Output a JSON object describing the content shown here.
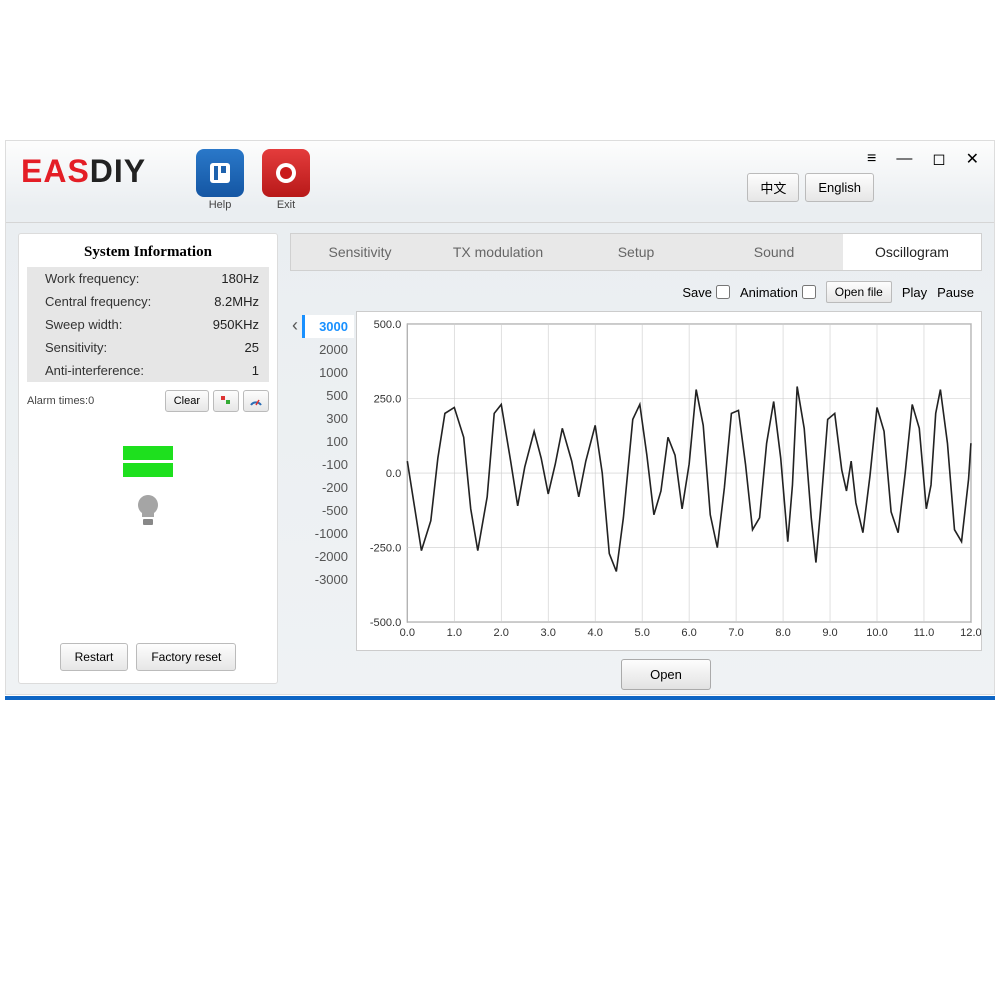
{
  "logo": {
    "part1": "EAS",
    "part2": "DIY"
  },
  "header": {
    "help_label": "Help",
    "exit_label": "Exit",
    "lang_cn": "中文",
    "lang_en": "English"
  },
  "sysinfo": {
    "title": "System  Information",
    "rows": [
      {
        "label": "Work frequency:",
        "value": "180Hz"
      },
      {
        "label": "Central frequency:",
        "value": "8.2MHz"
      },
      {
        "label": "Sweep width:",
        "value": "950KHz"
      },
      {
        "label": "Sensitivity:",
        "value": "25"
      },
      {
        "label": "Anti-interference:",
        "value": "1"
      }
    ]
  },
  "alarm": {
    "label": "Alarm times:0",
    "clear": "Clear"
  },
  "bottom": {
    "restart": "Restart",
    "factory": "Factory reset"
  },
  "tabs": {
    "items": [
      "Sensitivity",
      "TX modulation",
      "Setup",
      "Sound",
      "Oscillogram"
    ],
    "active_index": 4
  },
  "controls": {
    "save": "Save",
    "animation": "Animation",
    "openfile": "Open file",
    "play": "Play",
    "pause": "Pause"
  },
  "yscale": {
    "items": [
      "3000",
      "2000",
      "1000",
      "500",
      "300",
      "100",
      "-100",
      "-200",
      "-500",
      "-1000",
      "-2000",
      "-3000"
    ],
    "selected_index": 0
  },
  "chart": {
    "type": "line",
    "xlim": [
      0,
      12
    ],
    "ylim": [
      -500,
      500
    ],
    "xticks": [
      0,
      1,
      2,
      3,
      4,
      5,
      6,
      7,
      8,
      9,
      10,
      11,
      12
    ],
    "yticks": [
      -500,
      -250,
      0,
      250,
      500
    ],
    "ytick_labels": [
      "-500.0",
      "-250.0",
      "0.0",
      "250.0",
      "500.0"
    ],
    "xtick_labels": [
      "0.0",
      "1.0",
      "2.0",
      "3.0",
      "4.0",
      "5.0",
      "6.0",
      "7.0",
      "8.0",
      "9.0",
      "10.0",
      "11.0",
      "12.0"
    ],
    "grid_color": "#cccccc",
    "line_color": "#222222",
    "background": "#ffffff",
    "axis_fontsize": 11,
    "data_xy": [
      [
        0.0,
        40
      ],
      [
        0.15,
        -110
      ],
      [
        0.3,
        -260
      ],
      [
        0.5,
        -160
      ],
      [
        0.65,
        50
      ],
      [
        0.8,
        200
      ],
      [
        1.0,
        220
      ],
      [
        1.2,
        120
      ],
      [
        1.35,
        -120
      ],
      [
        1.5,
        -260
      ],
      [
        1.7,
        -80
      ],
      [
        1.85,
        200
      ],
      [
        2.0,
        230
      ],
      [
        2.2,
        40
      ],
      [
        2.35,
        -110
      ],
      [
        2.5,
        20
      ],
      [
        2.7,
        140
      ],
      [
        2.85,
        50
      ],
      [
        3.0,
        -70
      ],
      [
        3.15,
        30
      ],
      [
        3.3,
        150
      ],
      [
        3.5,
        40
      ],
      [
        3.65,
        -80
      ],
      [
        3.8,
        40
      ],
      [
        4.0,
        160
      ],
      [
        4.15,
        0
      ],
      [
        4.3,
        -270
      ],
      [
        4.45,
        -330
      ],
      [
        4.6,
        -150
      ],
      [
        4.8,
        180
      ],
      [
        4.95,
        230
      ],
      [
        5.1,
        60
      ],
      [
        5.25,
        -140
      ],
      [
        5.4,
        -60
      ],
      [
        5.55,
        120
      ],
      [
        5.7,
        60
      ],
      [
        5.85,
        -120
      ],
      [
        6.0,
        30
      ],
      [
        6.15,
        280
      ],
      [
        6.3,
        160
      ],
      [
        6.45,
        -140
      ],
      [
        6.6,
        -250
      ],
      [
        6.75,
        -50
      ],
      [
        6.9,
        200
      ],
      [
        7.05,
        210
      ],
      [
        7.2,
        30
      ],
      [
        7.35,
        -190
      ],
      [
        7.5,
        -150
      ],
      [
        7.65,
        100
      ],
      [
        7.8,
        240
      ],
      [
        7.95,
        50
      ],
      [
        8.1,
        -230
      ],
      [
        8.2,
        -40
      ],
      [
        8.3,
        290
      ],
      [
        8.45,
        150
      ],
      [
        8.6,
        -150
      ],
      [
        8.7,
        -300
      ],
      [
        8.8,
        -120
      ],
      [
        8.95,
        180
      ],
      [
        9.1,
        200
      ],
      [
        9.25,
        10
      ],
      [
        9.35,
        -60
      ],
      [
        9.45,
        40
      ],
      [
        9.55,
        -100
      ],
      [
        9.7,
        -200
      ],
      [
        9.85,
        -10
      ],
      [
        10.0,
        220
      ],
      [
        10.15,
        140
      ],
      [
        10.3,
        -130
      ],
      [
        10.45,
        -200
      ],
      [
        10.6,
        0
      ],
      [
        10.75,
        230
      ],
      [
        10.9,
        150
      ],
      [
        11.05,
        -120
      ],
      [
        11.15,
        -40
      ],
      [
        11.25,
        200
      ],
      [
        11.35,
        280
      ],
      [
        11.5,
        100
      ],
      [
        11.65,
        -190
      ],
      [
        11.8,
        -230
      ],
      [
        11.95,
        -20
      ],
      [
        12.0,
        100
      ]
    ]
  },
  "open_btn": "Open",
  "colors": {
    "accent_blue": "#0d65c4",
    "green_indicator": "#1ee01e",
    "red": "#e41e26"
  }
}
